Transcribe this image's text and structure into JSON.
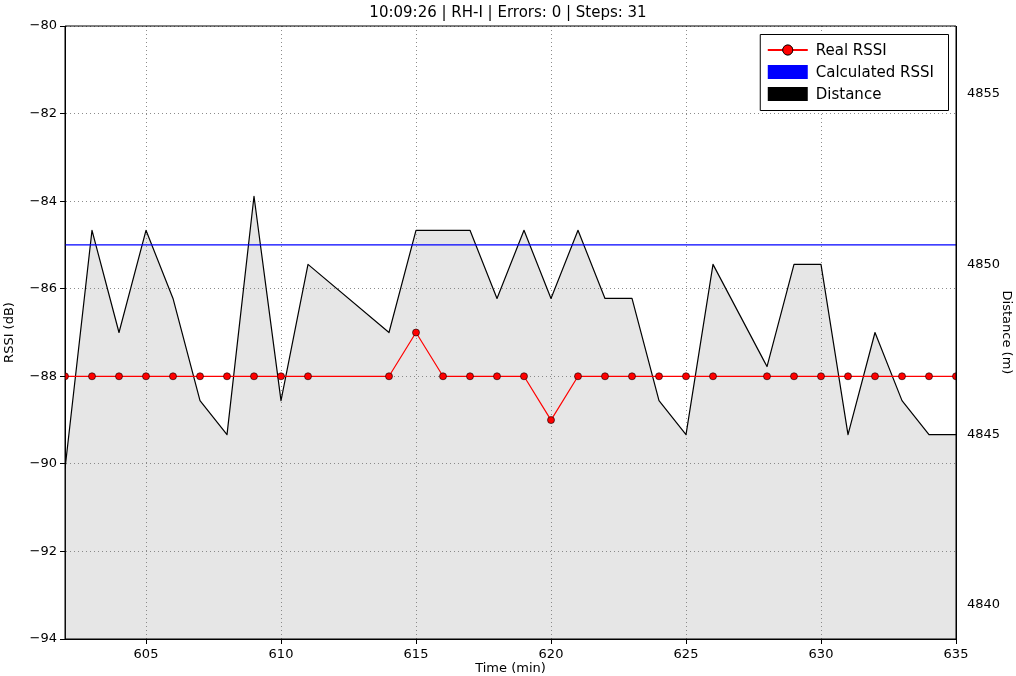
{
  "chart_data": {
    "type": "line",
    "title": "10:09:26 | RH-I | Errors: 0 | Steps: 31",
    "xlabel": "Time (min)",
    "ylabel": "RSSI (dB)",
    "y2label": "Distance (m)",
    "xlim": [
      602,
      635
    ],
    "xticks": [
      605,
      610,
      615,
      620,
      625,
      630,
      635
    ],
    "ylim": [
      -94,
      -80
    ],
    "yticks": [
      {
        "value": -94,
        "label": "−94"
      },
      {
        "value": -92,
        "label": "−92"
      },
      {
        "value": -90,
        "label": "−90"
      },
      {
        "value": -88,
        "label": "−88"
      },
      {
        "value": -86,
        "label": "−86"
      },
      {
        "value": -84,
        "label": "−84"
      },
      {
        "value": -82,
        "label": "−82"
      },
      {
        "value": -80,
        "label": "−80"
      }
    ],
    "y2lim": [
      4839,
      4857
    ],
    "y2ticks": [
      4840,
      4845,
      4850,
      4855
    ],
    "grid": true,
    "legend": "top right",
    "line_style": "solid",
    "series": [
      {
        "name": "Real RSSI",
        "color": "#ff0000",
        "marker": "circle",
        "x": [
          602,
          603,
          604,
          605,
          606,
          607,
          608,
          609,
          610,
          611,
          614,
          615,
          616,
          617,
          618,
          619,
          620,
          621,
          622,
          623,
          624,
          625,
          626,
          628,
          629,
          630,
          631,
          632,
          633,
          634,
          635
        ],
        "values": [
          -88,
          -88,
          -88,
          -88,
          -88,
          -88,
          -88,
          -88,
          -88,
          -88,
          -88,
          -87,
          -88,
          -88,
          -88,
          -88,
          -89,
          -88,
          -88,
          -88,
          -88,
          -88,
          -88,
          -88,
          -88,
          -88,
          -88,
          -88,
          -88,
          -88,
          -88
        ]
      },
      {
        "name": "Calculated RSSI",
        "color": "#0000ff",
        "marker": "none",
        "x": [
          602,
          635
        ],
        "values": [
          -85,
          -85
        ]
      },
      {
        "name": "Distance",
        "type": "area",
        "axis": "y2",
        "color": "#000000",
        "marker": "none",
        "x": [
          602,
          603,
          604,
          605,
          606,
          607,
          608,
          609,
          610,
          611,
          614,
          615,
          617,
          618,
          619,
          620,
          621,
          622,
          623,
          624,
          625,
          626,
          628,
          629,
          630,
          631,
          632,
          633,
          634,
          635
        ],
        "values": [
          4844,
          4851,
          4848,
          4851,
          4849,
          4846,
          4845,
          4852,
          4846,
          4850,
          4848,
          4851,
          4851,
          4849,
          4851,
          4849,
          4851,
          4849,
          4849,
          4846,
          4845,
          4850,
          4847,
          4850,
          4850,
          4845,
          4848,
          4846,
          4845,
          4845
        ]
      }
    ]
  }
}
